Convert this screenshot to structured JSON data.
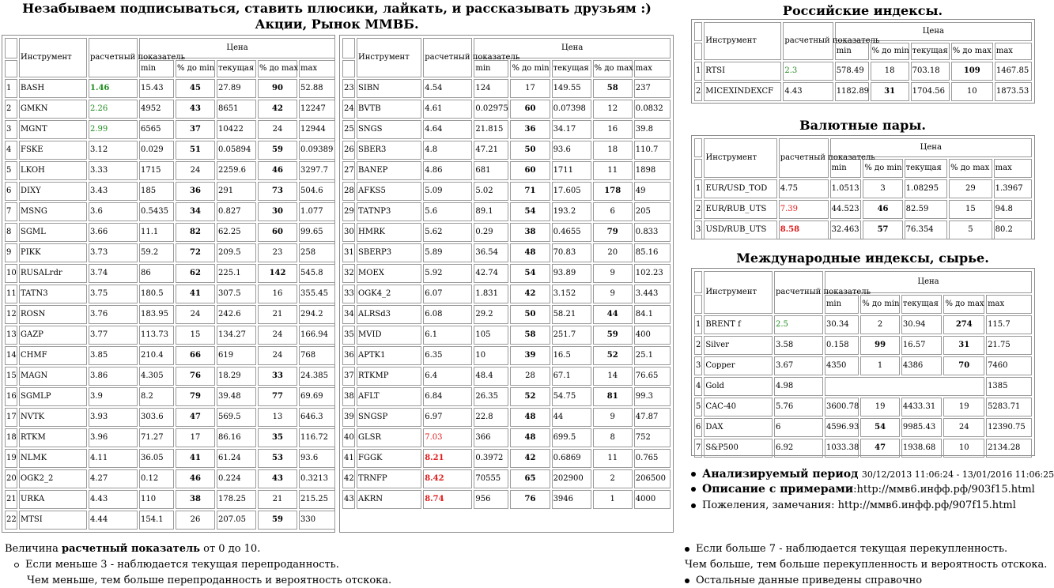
{
  "header": {
    "line1": "Незабываем подписываться, ставить плюсики, лайкать, и рассказывать друзьям :)",
    "line2": "Акции, Рынок ММВБ."
  },
  "columns": {
    "instrument": "Инструмент",
    "calc": "расчетный показатель",
    "price": "Цена",
    "min": "min",
    "pct_min": "% до min",
    "current": "текущая",
    "pct_max": "% до max",
    "max": "max"
  },
  "stocks_left": [
    {
      "n": "1",
      "name": "BASH",
      "calc": "1.46",
      "calc_style": "green-bold",
      "min": "15.43",
      "pmin": "45",
      "pmin_b": true,
      "cur": "27.89",
      "pmax": "90",
      "pmax_b": true,
      "max": "52.88"
    },
    {
      "n": "2",
      "name": "GMKN",
      "calc": "2.26",
      "calc_style": "green",
      "min": "4952",
      "pmin": "43",
      "pmin_b": true,
      "cur": "8651",
      "pmax": "42",
      "pmax_b": true,
      "max": "12247"
    },
    {
      "n": "3",
      "name": "MGNT",
      "calc": "2.99",
      "calc_style": "green",
      "min": "6565",
      "pmin": "37",
      "pmin_b": true,
      "cur": "10422",
      "pmax": "24",
      "pmax_b": false,
      "max": "12944"
    },
    {
      "n": "4",
      "name": "FSKE",
      "calc": "3.12",
      "calc_style": "",
      "min": "0.029",
      "pmin": "51",
      "pmin_b": true,
      "cur": "0.05894",
      "pmax": "59",
      "pmax_b": true,
      "max": "0.09389"
    },
    {
      "n": "5",
      "name": "LKOH",
      "calc": "3.33",
      "calc_style": "",
      "min": "1715",
      "pmin": "24",
      "pmin_b": false,
      "cur": "2259.6",
      "pmax": "46",
      "pmax_b": true,
      "max": "3297.7"
    },
    {
      "n": "6",
      "name": "DIXY",
      "calc": "3.43",
      "calc_style": "",
      "min": "185",
      "pmin": "36",
      "pmin_b": true,
      "cur": "291",
      "pmax": "73",
      "pmax_b": true,
      "max": "504.6"
    },
    {
      "n": "7",
      "name": "MSNG",
      "calc": "3.6",
      "calc_style": "",
      "min": "0.5435",
      "pmin": "34",
      "pmin_b": true,
      "cur": "0.827",
      "pmax": "30",
      "pmax_b": true,
      "max": "1.077"
    },
    {
      "n": "8",
      "name": "SGML",
      "calc": "3.66",
      "calc_style": "",
      "min": "11.1",
      "pmin": "82",
      "pmin_b": true,
      "cur": "62.25",
      "pmax": "60",
      "pmax_b": true,
      "max": "99.65"
    },
    {
      "n": "9",
      "name": "PIKK",
      "calc": "3.73",
      "calc_style": "",
      "min": "59.2",
      "pmin": "72",
      "pmin_b": true,
      "cur": "209.5",
      "pmax": "23",
      "pmax_b": false,
      "max": "258"
    },
    {
      "n": "10",
      "name": "RUSALrdr",
      "calc": "3.74",
      "calc_style": "",
      "min": "86",
      "pmin": "62",
      "pmin_b": true,
      "cur": "225.1",
      "pmax": "142",
      "pmax_b": true,
      "max": "545.8"
    },
    {
      "n": "11",
      "name": "TATN3",
      "calc": "3.75",
      "calc_style": "",
      "min": "180.5",
      "pmin": "41",
      "pmin_b": true,
      "cur": "307.5",
      "pmax": "16",
      "pmax_b": false,
      "max": "355.45"
    },
    {
      "n": "12",
      "name": "ROSN",
      "calc": "3.76",
      "calc_style": "",
      "min": "183.95",
      "pmin": "24",
      "pmin_b": false,
      "cur": "242.6",
      "pmax": "21",
      "pmax_b": false,
      "max": "294.2"
    },
    {
      "n": "13",
      "name": "GAZP",
      "calc": "3.77",
      "calc_style": "",
      "min": "113.73",
      "pmin": "15",
      "pmin_b": false,
      "cur": "134.27",
      "pmax": "24",
      "pmax_b": false,
      "max": "166.94"
    },
    {
      "n": "14",
      "name": "CHMF",
      "calc": "3.85",
      "calc_style": "",
      "min": "210.4",
      "pmin": "66",
      "pmin_b": true,
      "cur": "619",
      "pmax": "24",
      "pmax_b": false,
      "max": "768"
    },
    {
      "n": "15",
      "name": "MAGN",
      "calc": "3.86",
      "calc_style": "",
      "min": "4.305",
      "pmin": "76",
      "pmin_b": true,
      "cur": "18.29",
      "pmax": "33",
      "pmax_b": true,
      "max": "24.385"
    },
    {
      "n": "16",
      "name": "SGMLP",
      "calc": "3.9",
      "calc_style": "",
      "min": "8.2",
      "pmin": "79",
      "pmin_b": true,
      "cur": "39.48",
      "pmax": "77",
      "pmax_b": true,
      "max": "69.69"
    },
    {
      "n": "17",
      "name": "NVTK",
      "calc": "3.93",
      "calc_style": "",
      "min": "303.6",
      "pmin": "47",
      "pmin_b": true,
      "cur": "569.5",
      "pmax": "13",
      "pmax_b": false,
      "max": "646.3"
    },
    {
      "n": "18",
      "name": "RTKM",
      "calc": "3.96",
      "calc_style": "",
      "min": "71.27",
      "pmin": "17",
      "pmin_b": false,
      "cur": "86.16",
      "pmax": "35",
      "pmax_b": true,
      "max": "116.72"
    },
    {
      "n": "19",
      "name": "NLMK",
      "calc": "4.11",
      "calc_style": "",
      "min": "36.05",
      "pmin": "41",
      "pmin_b": true,
      "cur": "61.24",
      "pmax": "53",
      "pmax_b": true,
      "max": "93.6"
    },
    {
      "n": "20",
      "name": "OGK2_2",
      "calc": "4.27",
      "calc_style": "",
      "min": "0.12",
      "pmin": "46",
      "pmin_b": true,
      "cur": "0.224",
      "pmax": "43",
      "pmax_b": true,
      "max": "0.3213"
    },
    {
      "n": "21",
      "name": "URKA",
      "calc": "4.43",
      "calc_style": "",
      "min": "110",
      "pmin": "38",
      "pmin_b": true,
      "cur": "178.25",
      "pmax": "21",
      "pmax_b": false,
      "max": "215.25"
    },
    {
      "n": "22",
      "name": "MTSI",
      "calc": "4.44",
      "calc_style": "",
      "min": "154.1",
      "pmin": "26",
      "pmin_b": false,
      "cur": "207.05",
      "pmax": "59",
      "pmax_b": true,
      "max": "330"
    }
  ],
  "stocks_right": [
    {
      "n": "23",
      "name": "SIBN",
      "calc": "4.54",
      "calc_style": "",
      "min": "124",
      "pmin": "17",
      "pmin_b": false,
      "cur": "149.55",
      "pmax": "58",
      "pmax_b": true,
      "max": "237"
    },
    {
      "n": "24",
      "name": "BVTB",
      "calc": "4.61",
      "calc_style": "",
      "min": "0.02975",
      "pmin": "60",
      "pmin_b": true,
      "cur": "0.07398",
      "pmax": "12",
      "pmax_b": false,
      "max": "0.0832"
    },
    {
      "n": "25",
      "name": "SNGS",
      "calc": "4.64",
      "calc_style": "",
      "min": "21.815",
      "pmin": "36",
      "pmin_b": true,
      "cur": "34.17",
      "pmax": "16",
      "pmax_b": false,
      "max": "39.8"
    },
    {
      "n": "26",
      "name": "SBER3",
      "calc": "4.8",
      "calc_style": "",
      "min": "47.21",
      "pmin": "50",
      "pmin_b": true,
      "cur": "93.6",
      "pmax": "18",
      "pmax_b": false,
      "max": "110.7"
    },
    {
      "n": "27",
      "name": "BANEP",
      "calc": "4.86",
      "calc_style": "",
      "min": "681",
      "pmin": "60",
      "pmin_b": true,
      "cur": "1711",
      "pmax": "11",
      "pmax_b": false,
      "max": "1898"
    },
    {
      "n": "28",
      "name": "AFKS5",
      "calc": "5.09",
      "calc_style": "",
      "min": "5.02",
      "pmin": "71",
      "pmin_b": true,
      "cur": "17.605",
      "pmax": "178",
      "pmax_b": true,
      "max": "49"
    },
    {
      "n": "29",
      "name": "TATNP3",
      "calc": "5.6",
      "calc_style": "",
      "min": "89.1",
      "pmin": "54",
      "pmin_b": true,
      "cur": "193.2",
      "pmax": "6",
      "pmax_b": false,
      "max": "205"
    },
    {
      "n": "30",
      "name": "HMRK",
      "calc": "5.62",
      "calc_style": "",
      "min": "0.29",
      "pmin": "38",
      "pmin_b": true,
      "cur": "0.4655",
      "pmax": "79",
      "pmax_b": true,
      "max": "0.833"
    },
    {
      "n": "31",
      "name": "SBERP3",
      "calc": "5.89",
      "calc_style": "",
      "min": "36.54",
      "pmin": "48",
      "pmin_b": true,
      "cur": "70.83",
      "pmax": "20",
      "pmax_b": false,
      "max": "85.16"
    },
    {
      "n": "32",
      "name": "MOEX",
      "calc": "5.92",
      "calc_style": "",
      "min": "42.74",
      "pmin": "54",
      "pmin_b": true,
      "cur": "93.89",
      "pmax": "9",
      "pmax_b": false,
      "max": "102.23"
    },
    {
      "n": "33",
      "name": "OGK4_2",
      "calc": "6.07",
      "calc_style": "",
      "min": "1.831",
      "pmin": "42",
      "pmin_b": true,
      "cur": "3.152",
      "pmax": "9",
      "pmax_b": false,
      "max": "3.443"
    },
    {
      "n": "34",
      "name": "ALRSd3",
      "calc": "6.08",
      "calc_style": "",
      "min": "29.2",
      "pmin": "50",
      "pmin_b": true,
      "cur": "58.21",
      "pmax": "44",
      "pmax_b": true,
      "max": "84.1"
    },
    {
      "n": "35",
      "name": "MVID",
      "calc": "6.1",
      "calc_style": "",
      "min": "105",
      "pmin": "58",
      "pmin_b": true,
      "cur": "251.7",
      "pmax": "59",
      "pmax_b": true,
      "max": "400"
    },
    {
      "n": "36",
      "name": "APTK1",
      "calc": "6.35",
      "calc_style": "",
      "min": "10",
      "pmin": "39",
      "pmin_b": true,
      "cur": "16.5",
      "pmax": "52",
      "pmax_b": true,
      "max": "25.1"
    },
    {
      "n": "37",
      "name": "RTKMP",
      "calc": "6.4",
      "calc_style": "",
      "min": "48.4",
      "pmin": "28",
      "pmin_b": false,
      "cur": "67.1",
      "pmax": "14",
      "pmax_b": false,
      "max": "76.65"
    },
    {
      "n": "38",
      "name": "AFLT",
      "calc": "6.84",
      "calc_style": "",
      "min": "26.35",
      "pmin": "52",
      "pmin_b": true,
      "cur": "54.75",
      "pmax": "81",
      "pmax_b": true,
      "max": "99.3"
    },
    {
      "n": "39",
      "name": "SNGSP",
      "calc": "6.97",
      "calc_style": "",
      "min": "22.8",
      "pmin": "48",
      "pmin_b": true,
      "cur": "44",
      "pmax": "9",
      "pmax_b": false,
      "max": "47.87"
    },
    {
      "n": "40",
      "name": "GLSR",
      "calc": "7.03",
      "calc_style": "red",
      "min": "366",
      "pmin": "48",
      "pmin_b": true,
      "cur": "699.5",
      "pmax": "8",
      "pmax_b": false,
      "max": "752"
    },
    {
      "n": "41",
      "name": "FGGK",
      "calc": "8.21",
      "calc_style": "red-bold",
      "min": "0.3972",
      "pmin": "42",
      "pmin_b": true,
      "cur": "0.6869",
      "pmax": "11",
      "pmax_b": false,
      "max": "0.765"
    },
    {
      "n": "42",
      "name": "TRNFP",
      "calc": "8.42",
      "calc_style": "red-bold",
      "min": "70555",
      "pmin": "65",
      "pmin_b": true,
      "cur": "202900",
      "pmax": "2",
      "pmax_b": false,
      "max": "206500"
    },
    {
      "n": "43",
      "name": "AKRN",
      "calc": "8.74",
      "calc_style": "red-bold",
      "min": "956",
      "pmin": "76",
      "pmin_b": true,
      "cur": "3946",
      "pmax": "1",
      "pmax_b": false,
      "max": "4000"
    }
  ],
  "ru_indexes": {
    "title": "Российские индексы",
    "rows": [
      {
        "n": "1",
        "name": "RTSI",
        "calc": "2.3",
        "calc_style": "green",
        "min": "578.49",
        "pmin": "18",
        "pmin_b": false,
        "cur": "703.18",
        "pmax": "109",
        "pmax_b": true,
        "max": "1467.85"
      },
      {
        "n": "2",
        "name": "MICEXINDEXCF",
        "calc": "4.43",
        "calc_style": "",
        "min": "1182.89",
        "pmin": "31",
        "pmin_b": true,
        "cur": "1704.56",
        "pmax": "10",
        "pmax_b": false,
        "max": "1873.53"
      }
    ]
  },
  "fx": {
    "title": "Валютные пары",
    "rows": [
      {
        "n": "1",
        "name": "EUR/USD_TOD",
        "calc": "4.75",
        "calc_style": "",
        "min": "1.0513",
        "pmin": "3",
        "pmin_b": false,
        "cur": "1.08295",
        "pmax": "29",
        "pmax_b": false,
        "max": "1.3967"
      },
      {
        "n": "2",
        "name": "EUR/RUB_UTS",
        "calc": "7.39",
        "calc_style": "red",
        "min": "44.523",
        "pmin": "46",
        "pmin_b": true,
        "cur": "82.59",
        "pmax": "15",
        "pmax_b": false,
        "max": "94.8"
      },
      {
        "n": "3",
        "name": "USD/RUB_UTS",
        "calc": "8.58",
        "calc_style": "red-bold",
        "min": "32.463",
        "pmin": "57",
        "pmin_b": true,
        "cur": "76.354",
        "pmax": "5",
        "pmax_b": false,
        "max": "80.2"
      }
    ]
  },
  "intl": {
    "title": "Международные индексы, сырье",
    "rows": [
      {
        "n": "1",
        "name": "BRENT f",
        "calc": "2.5",
        "calc_style": "green",
        "min": "30.34",
        "pmin": "2",
        "pmin_b": false,
        "cur": "30.94",
        "pmax": "274",
        "pmax_b": true,
        "max": "115.7"
      },
      {
        "n": "2",
        "name": "Silver",
        "calc": "3.58",
        "calc_style": "",
        "min": "0.158",
        "pmin": "99",
        "pmin_b": true,
        "cur": "16.57",
        "pmax": "31",
        "pmax_b": true,
        "max": "21.75"
      },
      {
        "n": "3",
        "name": "Copper",
        "calc": "3.67",
        "calc_style": "",
        "min": "4350",
        "pmin": "1",
        "pmin_b": false,
        "cur": "4386",
        "pmax": "70",
        "pmax_b": true,
        "max": "7460"
      },
      {
        "n": "4",
        "name": "Gold",
        "calc": "4.98",
        "calc_style": "",
        "min": "",
        "pmin": "",
        "pmin_b": false,
        "cur": "",
        "pmax": "",
        "pmax_b": false,
        "max": "1385",
        "blank_mid": true
      },
      {
        "n": "5",
        "name": "CAC-40",
        "calc": "5.76",
        "calc_style": "",
        "min": "3600.78",
        "pmin": "19",
        "pmin_b": false,
        "cur": "4433.31",
        "pmax": "19",
        "pmax_b": false,
        "max": "5283.71"
      },
      {
        "n": "6",
        "name": "DAX",
        "calc": "6",
        "calc_style": "",
        "min": "4596.93",
        "pmin": "54",
        "pmin_b": true,
        "cur": "9985.43",
        "pmax": "24",
        "pmax_b": false,
        "max": "12390.75"
      },
      {
        "n": "7",
        "name": "S&P500",
        "calc": "6.92",
        "calc_style": "",
        "min": "1033.38",
        "pmin": "47",
        "pmin_b": true,
        "cur": "1938.68",
        "pmax": "10",
        "pmax_b": false,
        "max": "2134.28"
      }
    ]
  },
  "notes": {
    "period_label": "Анализируемый период",
    "period_value": "30/12/2013 11:06:24 - 13/01/2016 11:06:25",
    "desc_label": "Описание с примерами",
    "desc_value": ":http://ммв6.инфф.рф/903f15.html",
    "wishes": "Пожеления, замечания: http://ммв6.инфф.рф/907f15.html"
  },
  "footer": {
    "left_pre": "Величина ",
    "left_bold": "расчетный показатель",
    "left_post": " от 0 до 10.",
    "left_item": "Если меньше 3 - наблюдается текущая перепроданность.",
    "left_line": "Чем меньше, тем больше перепроданность и вероятность отскока.",
    "right_item": "Если больше 7 - наблюдается текущая перекупленность.",
    "right_line": "Чем больше, тем больше перекупленность и вероятность отскока.",
    "right_item2": "Остальные данные приведены справочно"
  },
  "colors": {
    "green": "#1e8c1e",
    "red": "#e21a1a",
    "border": "#9a9a9a"
  }
}
